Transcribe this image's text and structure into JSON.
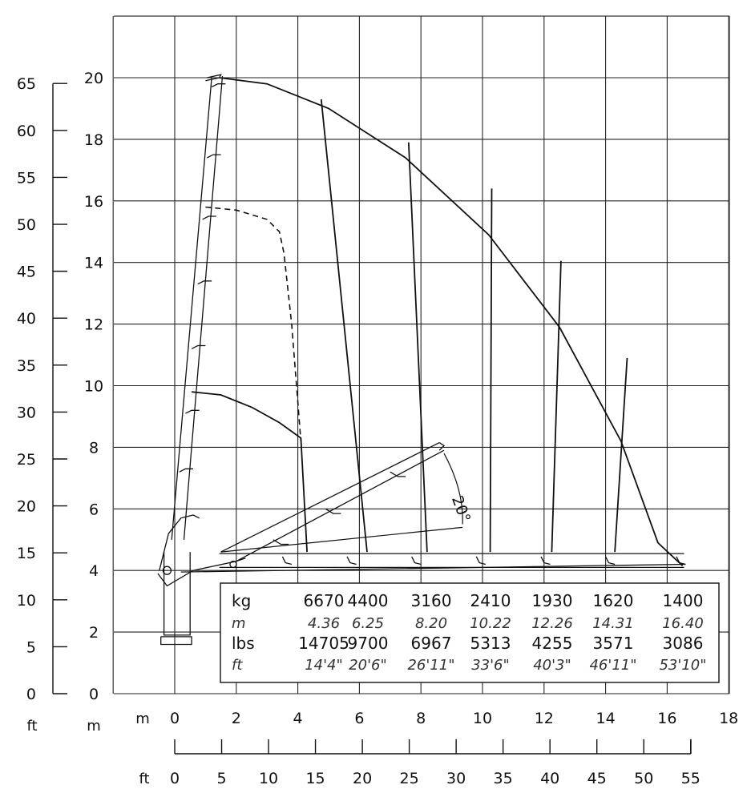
{
  "chart_data": {
    "type": "line",
    "title": "",
    "x_unit_m": "m",
    "x_unit_ft": "ft",
    "y_unit_m": "m",
    "y_unit_ft": "ft",
    "x_m_ticks": [
      "0",
      "2",
      "4",
      "6",
      "8",
      "10",
      "12",
      "14",
      "16",
      "18"
    ],
    "x_ft_ticks": [
      "0",
      "5",
      "10",
      "15",
      "20",
      "25",
      "30",
      "35",
      "40",
      "45",
      "50",
      "55"
    ],
    "y_m_ticks": [
      "0",
      "2",
      "4",
      "6",
      "8",
      "10",
      "12",
      "14",
      "16",
      "18",
      "20"
    ],
    "y_ft_ticks": [
      "0",
      "5",
      "10",
      "15",
      "20",
      "25",
      "30",
      "35",
      "40",
      "45",
      "50",
      "55",
      "60",
      "65"
    ],
    "xlim_m": [
      -2,
      18
    ],
    "ylim_m": [
      0,
      22
    ],
    "grid": true,
    "angle_label": "20°",
    "outer_envelope": {
      "name": "",
      "x": [
        1.45,
        3.0,
        5.0,
        7.5,
        10.2,
        12.5,
        14.5,
        15.7,
        16.5
      ],
      "y": [
        20.0,
        19.8,
        19.0,
        17.4,
        14.9,
        11.9,
        8.2,
        4.9,
        4.15
      ]
    },
    "reach_lines": [
      {
        "x_top": 4.76,
        "y_top": 19.3,
        "x_bot": 6.25,
        "y_bot": 4.6
      },
      {
        "x_top": 7.6,
        "y_top": 17.9,
        "x_bot": 8.2,
        "y_bot": 4.6
      },
      {
        "x_top": 10.3,
        "y_top": 16.4,
        "x_bot": 10.25,
        "y_bot": 4.6
      },
      {
        "x_top": 12.55,
        "y_top": 14.05,
        "x_bot": 12.25,
        "y_bot": 4.6
      },
      {
        "x_top": 14.7,
        "y_top": 10.9,
        "x_bot": 14.3,
        "y_bot": 4.6
      }
    ],
    "dashed_envelope": {
      "x": [
        1.0,
        2.0,
        3.0,
        3.4,
        3.55,
        3.8,
        4.1
      ],
      "y": [
        15.8,
        15.7,
        15.4,
        15.0,
        14.3,
        12.0,
        8.2
      ]
    },
    "inner_envelope": {
      "x": [
        0.55,
        1.5,
        2.5,
        3.4,
        4.1,
        4.3
      ],
      "y": [
        9.8,
        9.7,
        9.3,
        8.8,
        8.3,
        4.6
      ]
    },
    "load_table": {
      "rows": [
        {
          "label": "kg",
          "values": [
            "6670",
            "4400",
            "3160",
            "2410",
            "1930",
            "1620",
            "1400"
          ]
        },
        {
          "label": "m",
          "values": [
            "4.36",
            "6.25",
            "8.20",
            "10.22",
            "12.26",
            "14.31",
            "16.40"
          ]
        },
        {
          "label": "lbs",
          "values": [
            "14705",
            "9700",
            "6967",
            "5313",
            "4255",
            "3571",
            "3086"
          ]
        },
        {
          "label": "ft",
          "values": [
            "14'4\"",
            "20'6\"",
            "26'11\"",
            "33'6\"",
            "40'3\"",
            "46'11\"",
            "53'10\""
          ]
        }
      ]
    }
  }
}
